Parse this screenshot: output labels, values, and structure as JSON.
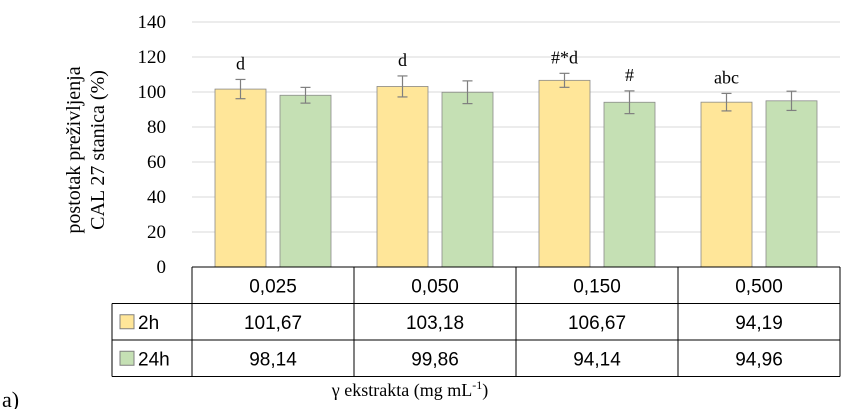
{
  "chart_data": {
    "type": "bar",
    "ylabel_line1": "postotak  preživljenja",
    "ylabel_line2": "CAL 27 stanica (%)",
    "xlabel_main": "γ ekstrakta (mg mL",
    "xlabel_sup": "-1",
    "xlabel_close": ")",
    "panel_label": "a)",
    "ylim": [
      0,
      140
    ],
    "yticks": [
      "0",
      "20",
      "40",
      "60",
      "80",
      "100",
      "120",
      "140"
    ],
    "grid": true,
    "categories": [
      "0,025",
      "0,050",
      "0,150",
      "0,500"
    ],
    "series": [
      {
        "name": "2h",
        "color": "#FFE699",
        "values": [
          101.67,
          103.18,
          106.67,
          94.19
        ],
        "display": [
          "101,67",
          "103,18",
          "106,67",
          "94,19"
        ],
        "errors": [
          5.5,
          6.0,
          4.0,
          5.0
        ],
        "annotations": [
          "d",
          "d",
          "#*d",
          "abc"
        ]
      },
      {
        "name": "24h",
        "color": "#C5E0B4",
        "values": [
          98.14,
          99.86,
          94.14,
          94.96
        ],
        "display": [
          "98,14",
          "99,86",
          "94,14",
          "94,96"
        ],
        "errors": [
          4.5,
          6.5,
          6.5,
          5.5
        ],
        "annotations": [
          "",
          "",
          "#",
          ""
        ]
      }
    ]
  }
}
